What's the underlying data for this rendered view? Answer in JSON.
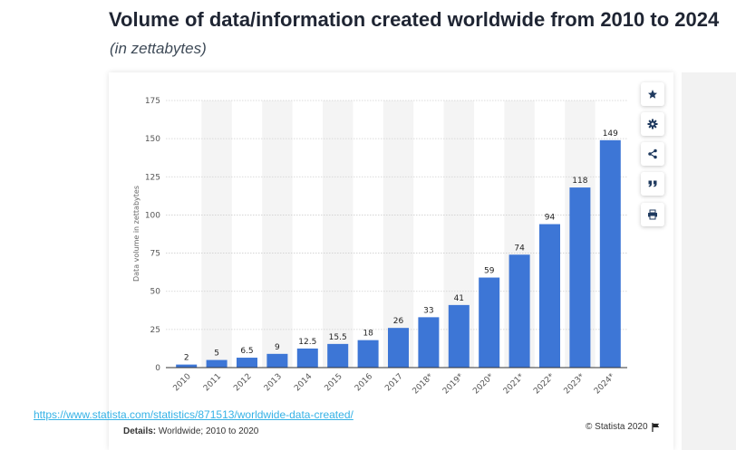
{
  "header": {
    "title": "Volume of data/information created worldwide from 2010 to 2024",
    "subtitle": "(in zettabytes)"
  },
  "toolbar": {
    "buttons": [
      {
        "name": "favorite-button",
        "icon": "star-icon"
      },
      {
        "name": "settings-button",
        "icon": "gear-icon"
      },
      {
        "name": "share-button",
        "icon": "share-icon"
      },
      {
        "name": "cite-button",
        "icon": "quote-icon"
      },
      {
        "name": "print-button",
        "icon": "print-icon"
      }
    ]
  },
  "footer": {
    "source_url": "https://www.statista.com/statistics/871513/worldwide-data-created/",
    "details_label": "Details:",
    "details_text": " Worldwide; 2010 to 2020",
    "copyright": "© Statista 2020",
    "flag_icon": "flag-icon"
  },
  "colors": {
    "bar": "#3d76d6",
    "band": "#f4f4f4",
    "grid": "#cfcfcf"
  },
  "chart_data": {
    "type": "bar",
    "title": "Volume of data/information created worldwide from 2010 to 2024",
    "subtitle": "(in zettabytes)",
    "xlabel": "",
    "ylabel": "Data volume in zettabytes",
    "ylim": [
      0,
      175
    ],
    "yticks": [
      0,
      25,
      50,
      75,
      100,
      125,
      150,
      175
    ],
    "grid": true,
    "categories": [
      "2010",
      "2011",
      "2012",
      "2013",
      "2014",
      "2015",
      "2016",
      "2017",
      "2018*",
      "2019*",
      "2020*",
      "2021*",
      "2022*",
      "2023*",
      "2024*"
    ],
    "values": [
      2,
      5,
      6.5,
      9,
      12.5,
      15.5,
      18,
      26,
      33,
      41,
      59,
      74,
      94,
      118,
      149
    ],
    "value_labels": [
      "2",
      "5",
      "6.5",
      "9",
      "12.5",
      "15.5",
      "18",
      "26",
      "33",
      "41",
      "59",
      "74",
      "94",
      "118",
      "149"
    ]
  }
}
